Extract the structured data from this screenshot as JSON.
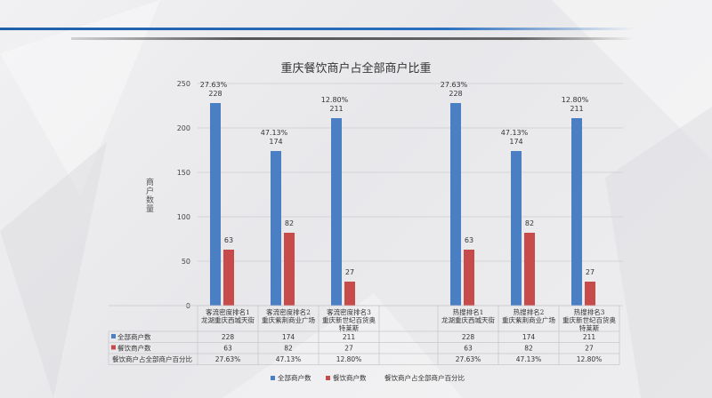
{
  "chart_data": {
    "type": "bar",
    "title": "重庆餐饮商户占全部商户比重",
    "ylabel": "商户数量",
    "ylim": [
      0,
      250
    ],
    "yticks": [
      0,
      50,
      100,
      150,
      200,
      250
    ],
    "categories": [
      [
        "客流密度排名1",
        "龙湖重庆西城天街"
      ],
      [
        "客流密度排名2",
        "重庆紫荆商业广场"
      ],
      [
        "客流密度排名3",
        "重庆新世纪百货奥",
        "特莱斯"
      ],
      [
        "热搜排名1",
        "龙湖重庆西城天街"
      ],
      [
        "热搜排名2",
        "重庆紫荆商业广场"
      ],
      [
        "热搜排名3",
        "重庆新世纪百货奥",
        "特莱斯"
      ]
    ],
    "series": [
      {
        "name": "全部商户数",
        "color": "#4a7fc4",
        "values": [
          228,
          174,
          211,
          228,
          174,
          211
        ]
      },
      {
        "name": "餐饮商户数",
        "color": "#c84b4b",
        "values": [
          63,
          82,
          27,
          63,
          82,
          27
        ]
      }
    ],
    "ratio_series": {
      "name": "餐饮商户占全部商户百分比",
      "values": [
        "27.63%",
        "47.13%",
        "12.80%",
        "27.63%",
        "47.13%",
        "12.80%"
      ]
    },
    "grid": true,
    "legend_position": "bottom"
  }
}
